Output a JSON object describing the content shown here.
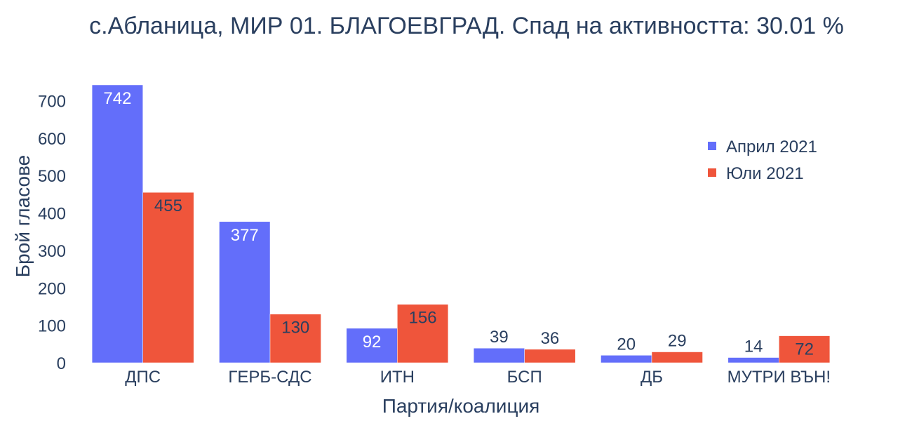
{
  "chart_data": {
    "type": "bar",
    "title": "с.Абланица, МИР 01. БЛАГОЕВГРАД. Спад на активността: 30.01 %",
    "xlabel": "Партия/коалиция",
    "ylabel": "Брой гласове",
    "categories": [
      "ДПС",
      "ГЕРБ-СДС",
      "ИТН",
      "БСП",
      "ДБ",
      "МУТРИ ВЪН!"
    ],
    "series": [
      {
        "name": "Април 2021",
        "color": "#636efa",
        "values": [
          742,
          377,
          92,
          39,
          20,
          14
        ]
      },
      {
        "name": "Юли 2021",
        "color": "#ef553b",
        "values": [
          455,
          130,
          156,
          36,
          29,
          72
        ]
      }
    ],
    "ylim": [
      0,
      742
    ],
    "yticks": [
      0,
      100,
      200,
      300,
      400,
      500,
      600,
      700
    ],
    "grid": false,
    "legend_position": "top-right"
  }
}
